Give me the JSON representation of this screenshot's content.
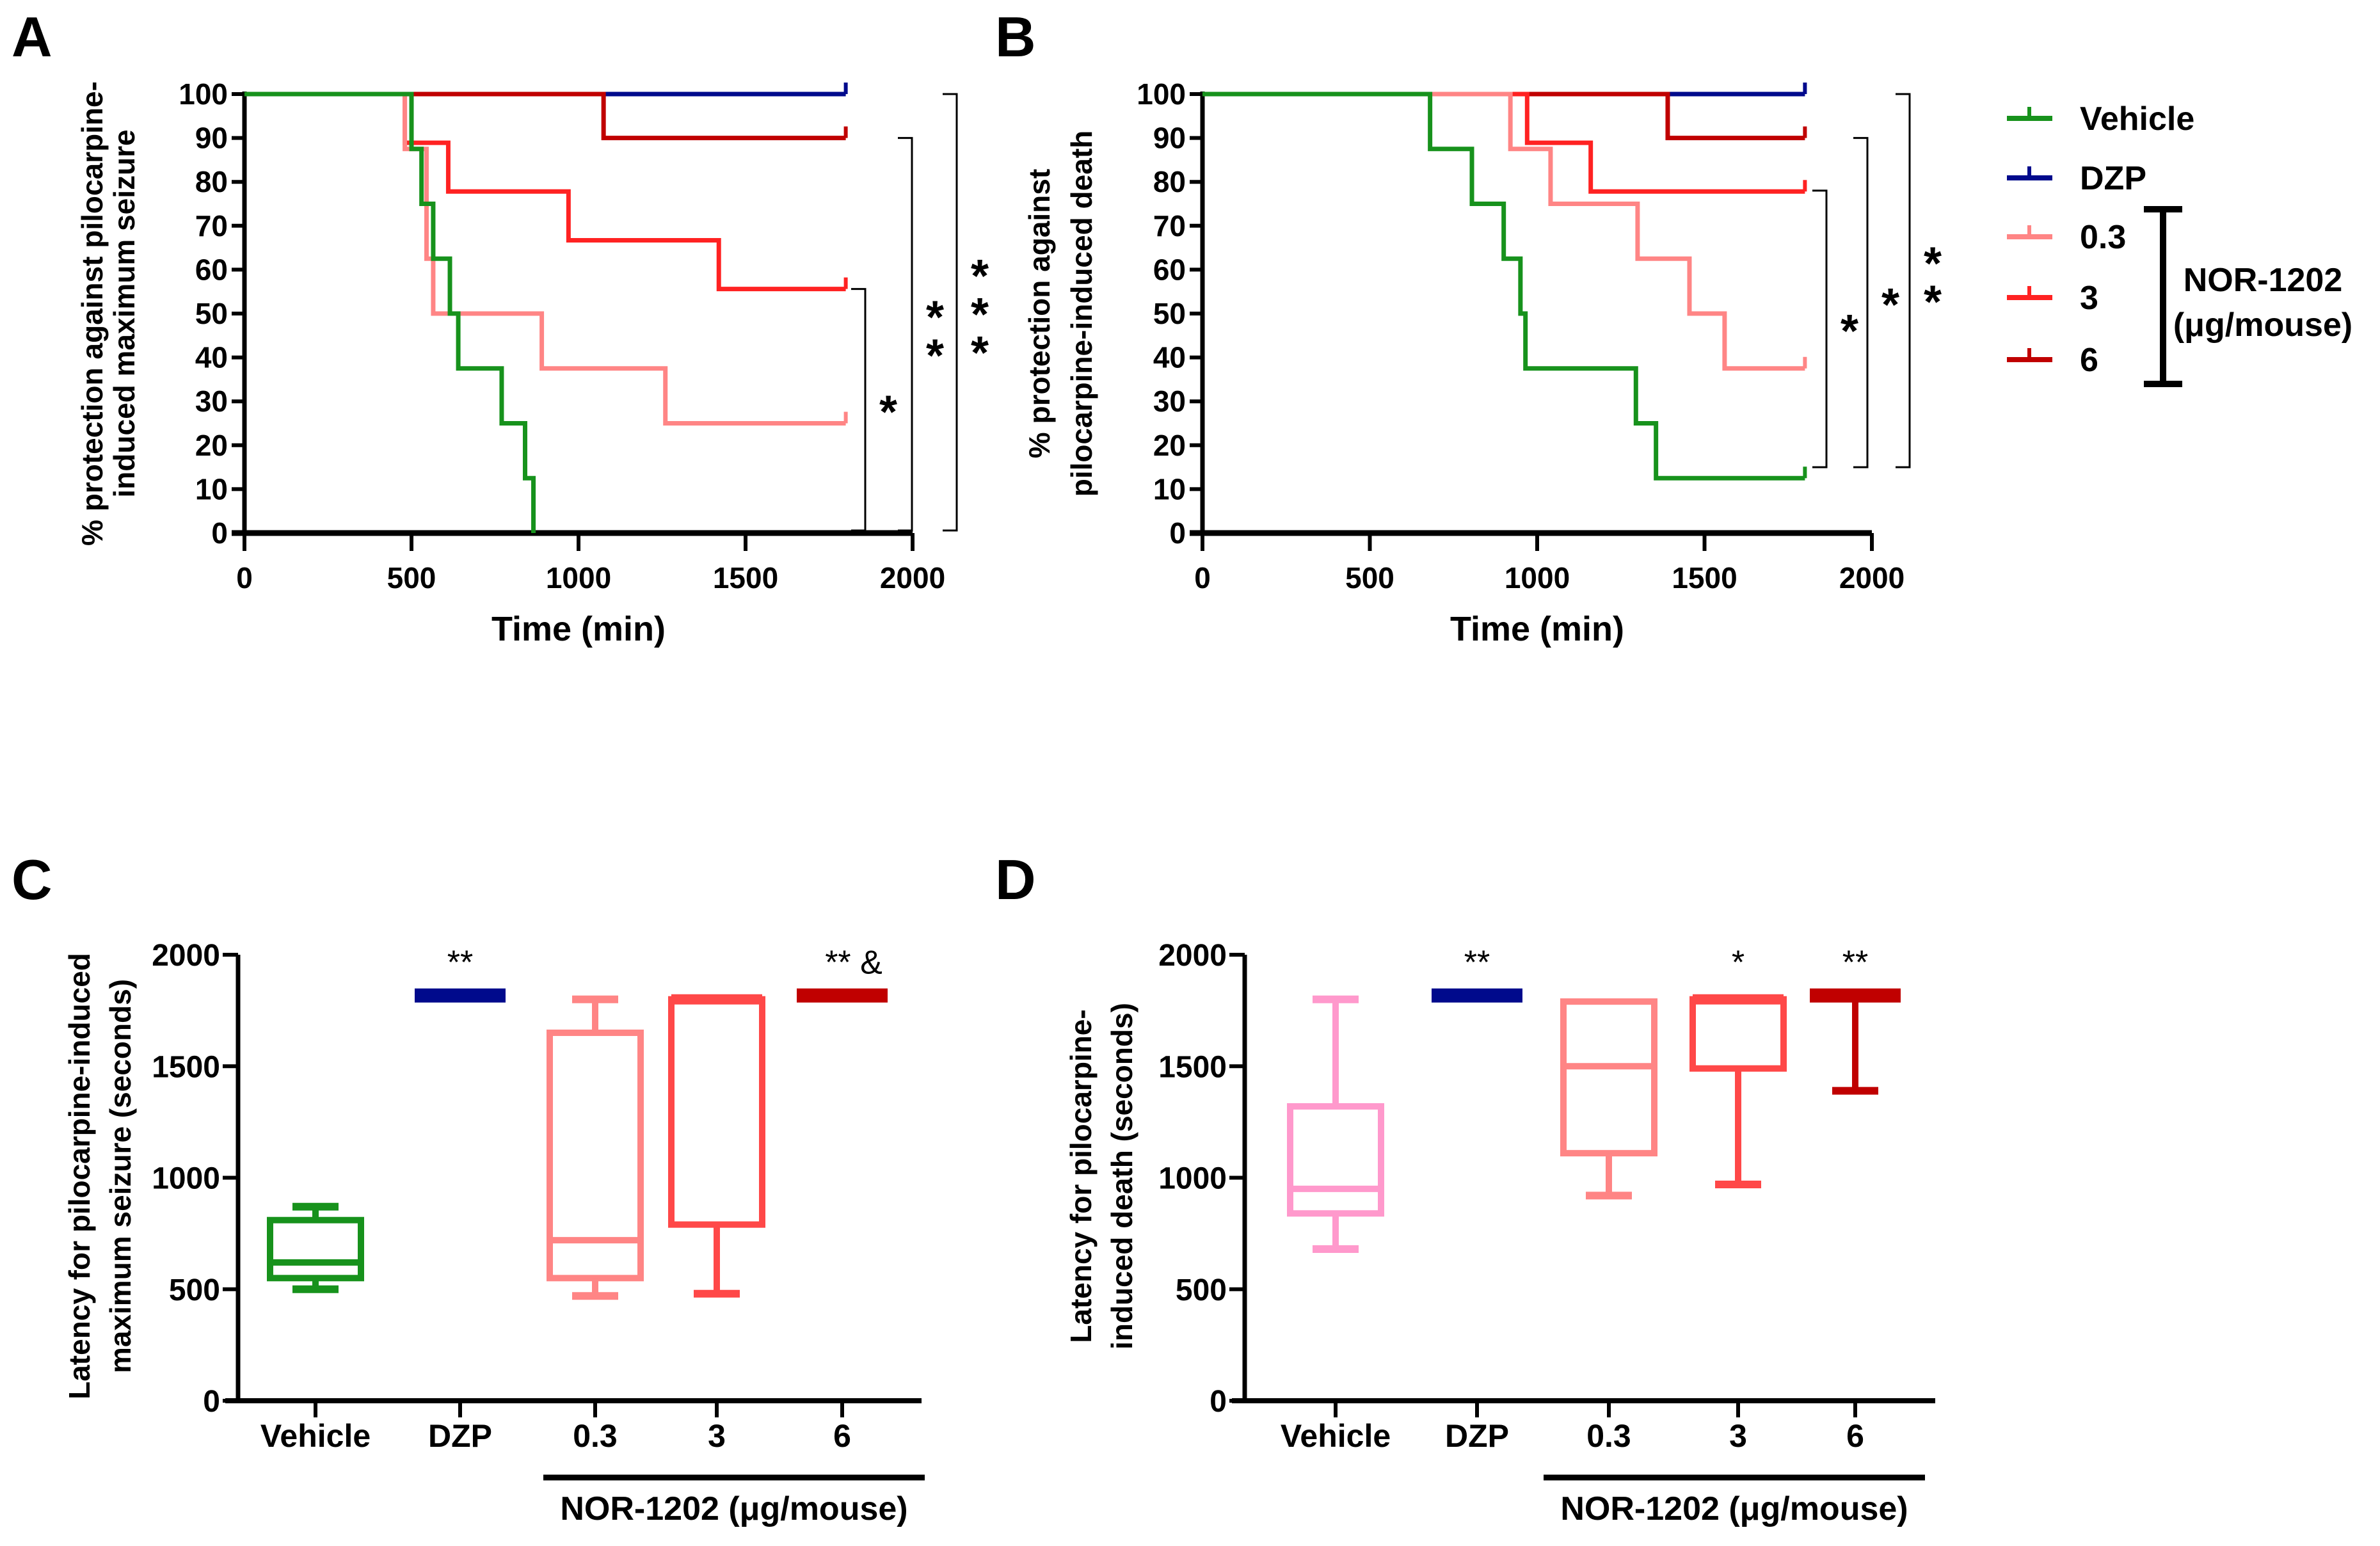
{
  "panels": {
    "A": "A",
    "B": "B",
    "C": "C",
    "D": "D"
  },
  "colors": {
    "Vehicle": "#17921c",
    "DZP": "#000a8c",
    "0.3": "#ff8585",
    "3": "#ff2222",
    "6": "#c00000",
    "vehicle_D": "#ff99cc",
    "box_3": "#ff4848",
    "axis": "#000000"
  },
  "legend": {
    "items": [
      "Vehicle",
      "DZP",
      "0.3",
      "3",
      "6"
    ],
    "group_label": "NOR-1202",
    "group_unit": "(μg/mouse)"
  },
  "chart_data": [
    {
      "id": "A",
      "type": "line",
      "step": true,
      "xlabel": "Time (min)",
      "ylabel": [
        "% protection against pilocarpine-",
        "induced maximum seizure"
      ],
      "xlim": [
        0,
        2000
      ],
      "ylim": [
        0,
        100
      ],
      "xticks": [
        0,
        500,
        1000,
        1500,
        2000
      ],
      "yticks": [
        0,
        10,
        20,
        30,
        40,
        50,
        60,
        70,
        80,
        90,
        100
      ],
      "series": [
        {
          "name": "DZP",
          "x": [
            0,
            1800
          ],
          "y": [
            100,
            100
          ]
        },
        {
          "name": "6",
          "x": [
            0,
            1075,
            1800
          ],
          "y": [
            100,
            90,
            90
          ]
        },
        {
          "name": "3",
          "x": [
            0,
            480,
            610,
            970,
            1420,
            1800
          ],
          "y": [
            100,
            88.9,
            77.8,
            66.7,
            55.6,
            55.6
          ]
        },
        {
          "name": "0.3",
          "x": [
            0,
            480,
            545,
            565,
            890,
            1260,
            1800
          ],
          "y": [
            100,
            87.5,
            62.5,
            50,
            37.5,
            25,
            25
          ]
        },
        {
          "name": "Vehicle",
          "x": [
            0,
            500,
            530,
            565,
            615,
            640,
            770,
            840,
            865
          ],
          "y": [
            100,
            87.5,
            75,
            62.5,
            50,
            37.5,
            25,
            12.5,
            0
          ]
        }
      ],
      "significance": [
        {
          "from": 55.6,
          "to": 0,
          "label": "*"
        },
        {
          "from": 90,
          "to": 0,
          "label": "**"
        },
        {
          "from": 100,
          "to": 0,
          "label": "***"
        }
      ]
    },
    {
      "id": "B",
      "type": "line",
      "step": true,
      "xlabel": "Time (min)",
      "ylabel": [
        "% protection against",
        "pilocarpine-induced death"
      ],
      "xlim": [
        0,
        2000
      ],
      "ylim": [
        0,
        100
      ],
      "xticks": [
        0,
        500,
        1000,
        1500,
        2000
      ],
      "yticks": [
        0,
        10,
        20,
        30,
        40,
        50,
        60,
        70,
        80,
        90,
        100
      ],
      "series": [
        {
          "name": "DZP",
          "x": [
            0,
            1800
          ],
          "y": [
            100,
            100
          ]
        },
        {
          "name": "6",
          "x": [
            0,
            1390,
            1800
          ],
          "y": [
            100,
            90,
            90
          ]
        },
        {
          "name": "3",
          "x": [
            0,
            970,
            1160,
            1800
          ],
          "y": [
            100,
            88.9,
            77.8,
            77.8
          ]
        },
        {
          "name": "0.3",
          "x": [
            0,
            920,
            1040,
            1300,
            1455,
            1560,
            1800
          ],
          "y": [
            100,
            87.5,
            75,
            62.5,
            50,
            37.5,
            37.5
          ]
        },
        {
          "name": "Vehicle",
          "x": [
            0,
            680,
            805,
            900,
            950,
            965,
            1295,
            1355,
            1800
          ],
          "y": [
            100,
            87.5,
            75,
            62.5,
            50,
            37.5,
            25,
            12.5,
            12.5
          ]
        }
      ],
      "significance": [
        {
          "from": 78,
          "to": 15,
          "label": "*"
        },
        {
          "from": 90,
          "to": 15,
          "label": "*"
        },
        {
          "from": 100,
          "to": 15,
          "label": "**"
        }
      ]
    },
    {
      "id": "C",
      "type": "box",
      "ylabel": [
        "Latency for pilocarpine-induced",
        "maximum seizure (seconds)"
      ],
      "ylim": [
        0,
        2000
      ],
      "yticks": [
        0,
        500,
        1000,
        1500,
        2000
      ],
      "categories": [
        "Vehicle",
        "DZP",
        "0.3",
        "3",
        "6"
      ],
      "group_label": "NOR-1202 (μg/mouse)",
      "boxes": [
        {
          "name": "Vehicle",
          "color_key": "Vehicle",
          "min": 500,
          "q1": 550,
          "median": 620,
          "q3": 810,
          "max": 870,
          "annotation": ""
        },
        {
          "name": "DZP",
          "color_key": "DZP",
          "min": 1800,
          "q1": 1800,
          "median": 1800,
          "q3": 1800,
          "max": 1800,
          "annotation": "**"
        },
        {
          "name": "0.3",
          "color_key": "0.3",
          "min": 470,
          "q1": 550,
          "median": 720,
          "q3": 1650,
          "max": 1800,
          "annotation": ""
        },
        {
          "name": "3",
          "color_key": "box_3",
          "min": 480,
          "q1": 790,
          "median": 1800,
          "q3": 1800,
          "max": 1800,
          "annotation": ""
        },
        {
          "name": "6",
          "color_key": "6",
          "min": 1800,
          "q1": 1800,
          "median": 1800,
          "q3": 1800,
          "max": 1800,
          "annotation": "** &"
        }
      ]
    },
    {
      "id": "D",
      "type": "box",
      "ylabel": [
        "Latency for pilocarpine-",
        "induced death (seconds)"
      ],
      "ylim": [
        0,
        2000
      ],
      "yticks": [
        0,
        500,
        1000,
        1500,
        2000
      ],
      "categories": [
        "Vehicle",
        "DZP",
        "0.3",
        "3",
        "6"
      ],
      "group_label": "NOR-1202 (μg/mouse)",
      "boxes": [
        {
          "name": "Vehicle",
          "color_key": "vehicle_D",
          "min": 680,
          "q1": 840,
          "median": 950,
          "q3": 1320,
          "max": 1800,
          "annotation": ""
        },
        {
          "name": "DZP",
          "color_key": "DZP",
          "min": 1800,
          "q1": 1800,
          "median": 1800,
          "q3": 1800,
          "max": 1800,
          "annotation": "**"
        },
        {
          "name": "0.3",
          "color_key": "0.3",
          "min": 920,
          "q1": 1110,
          "median": 1500,
          "q3": 1790,
          "max": 1790,
          "annotation": ""
        },
        {
          "name": "3",
          "color_key": "box_3",
          "min": 970,
          "q1": 1490,
          "median": 1800,
          "q3": 1800,
          "max": 1800,
          "annotation": "*"
        },
        {
          "name": "6",
          "color_key": "6",
          "min": 1390,
          "q1": 1800,
          "median": 1800,
          "q3": 1800,
          "max": 1800,
          "annotation": "**"
        }
      ]
    }
  ]
}
